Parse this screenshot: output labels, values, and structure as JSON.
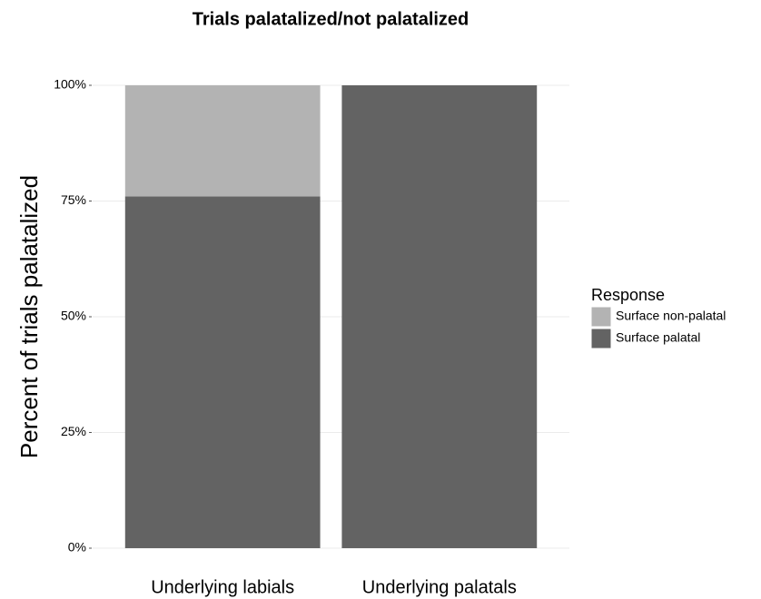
{
  "chart_data": {
    "type": "stacked_bar",
    "title": "Trials palatalized/not palatalized",
    "y_label": "Percent of trials palatalized",
    "categories": [
      "Underlying labials",
      "Underlying palatals"
    ],
    "series": [
      {
        "name": "Surface non-palatal",
        "color": "#b3b3b3",
        "values": [
          24,
          0
        ]
      },
      {
        "name": "Surface palatal",
        "color": "#636363",
        "values": [
          76,
          100
        ]
      }
    ],
    "legend_title": "Response",
    "legend": "right",
    "ylim": [
      0,
      100
    ],
    "yticks": [
      {
        "value": 0,
        "label": "0%"
      },
      {
        "value": 25,
        "label": "25%"
      },
      {
        "value": 50,
        "label": "50%"
      },
      {
        "value": 75,
        "label": "75%"
      },
      {
        "value": 100,
        "label": "100%"
      }
    ],
    "grid": true
  }
}
